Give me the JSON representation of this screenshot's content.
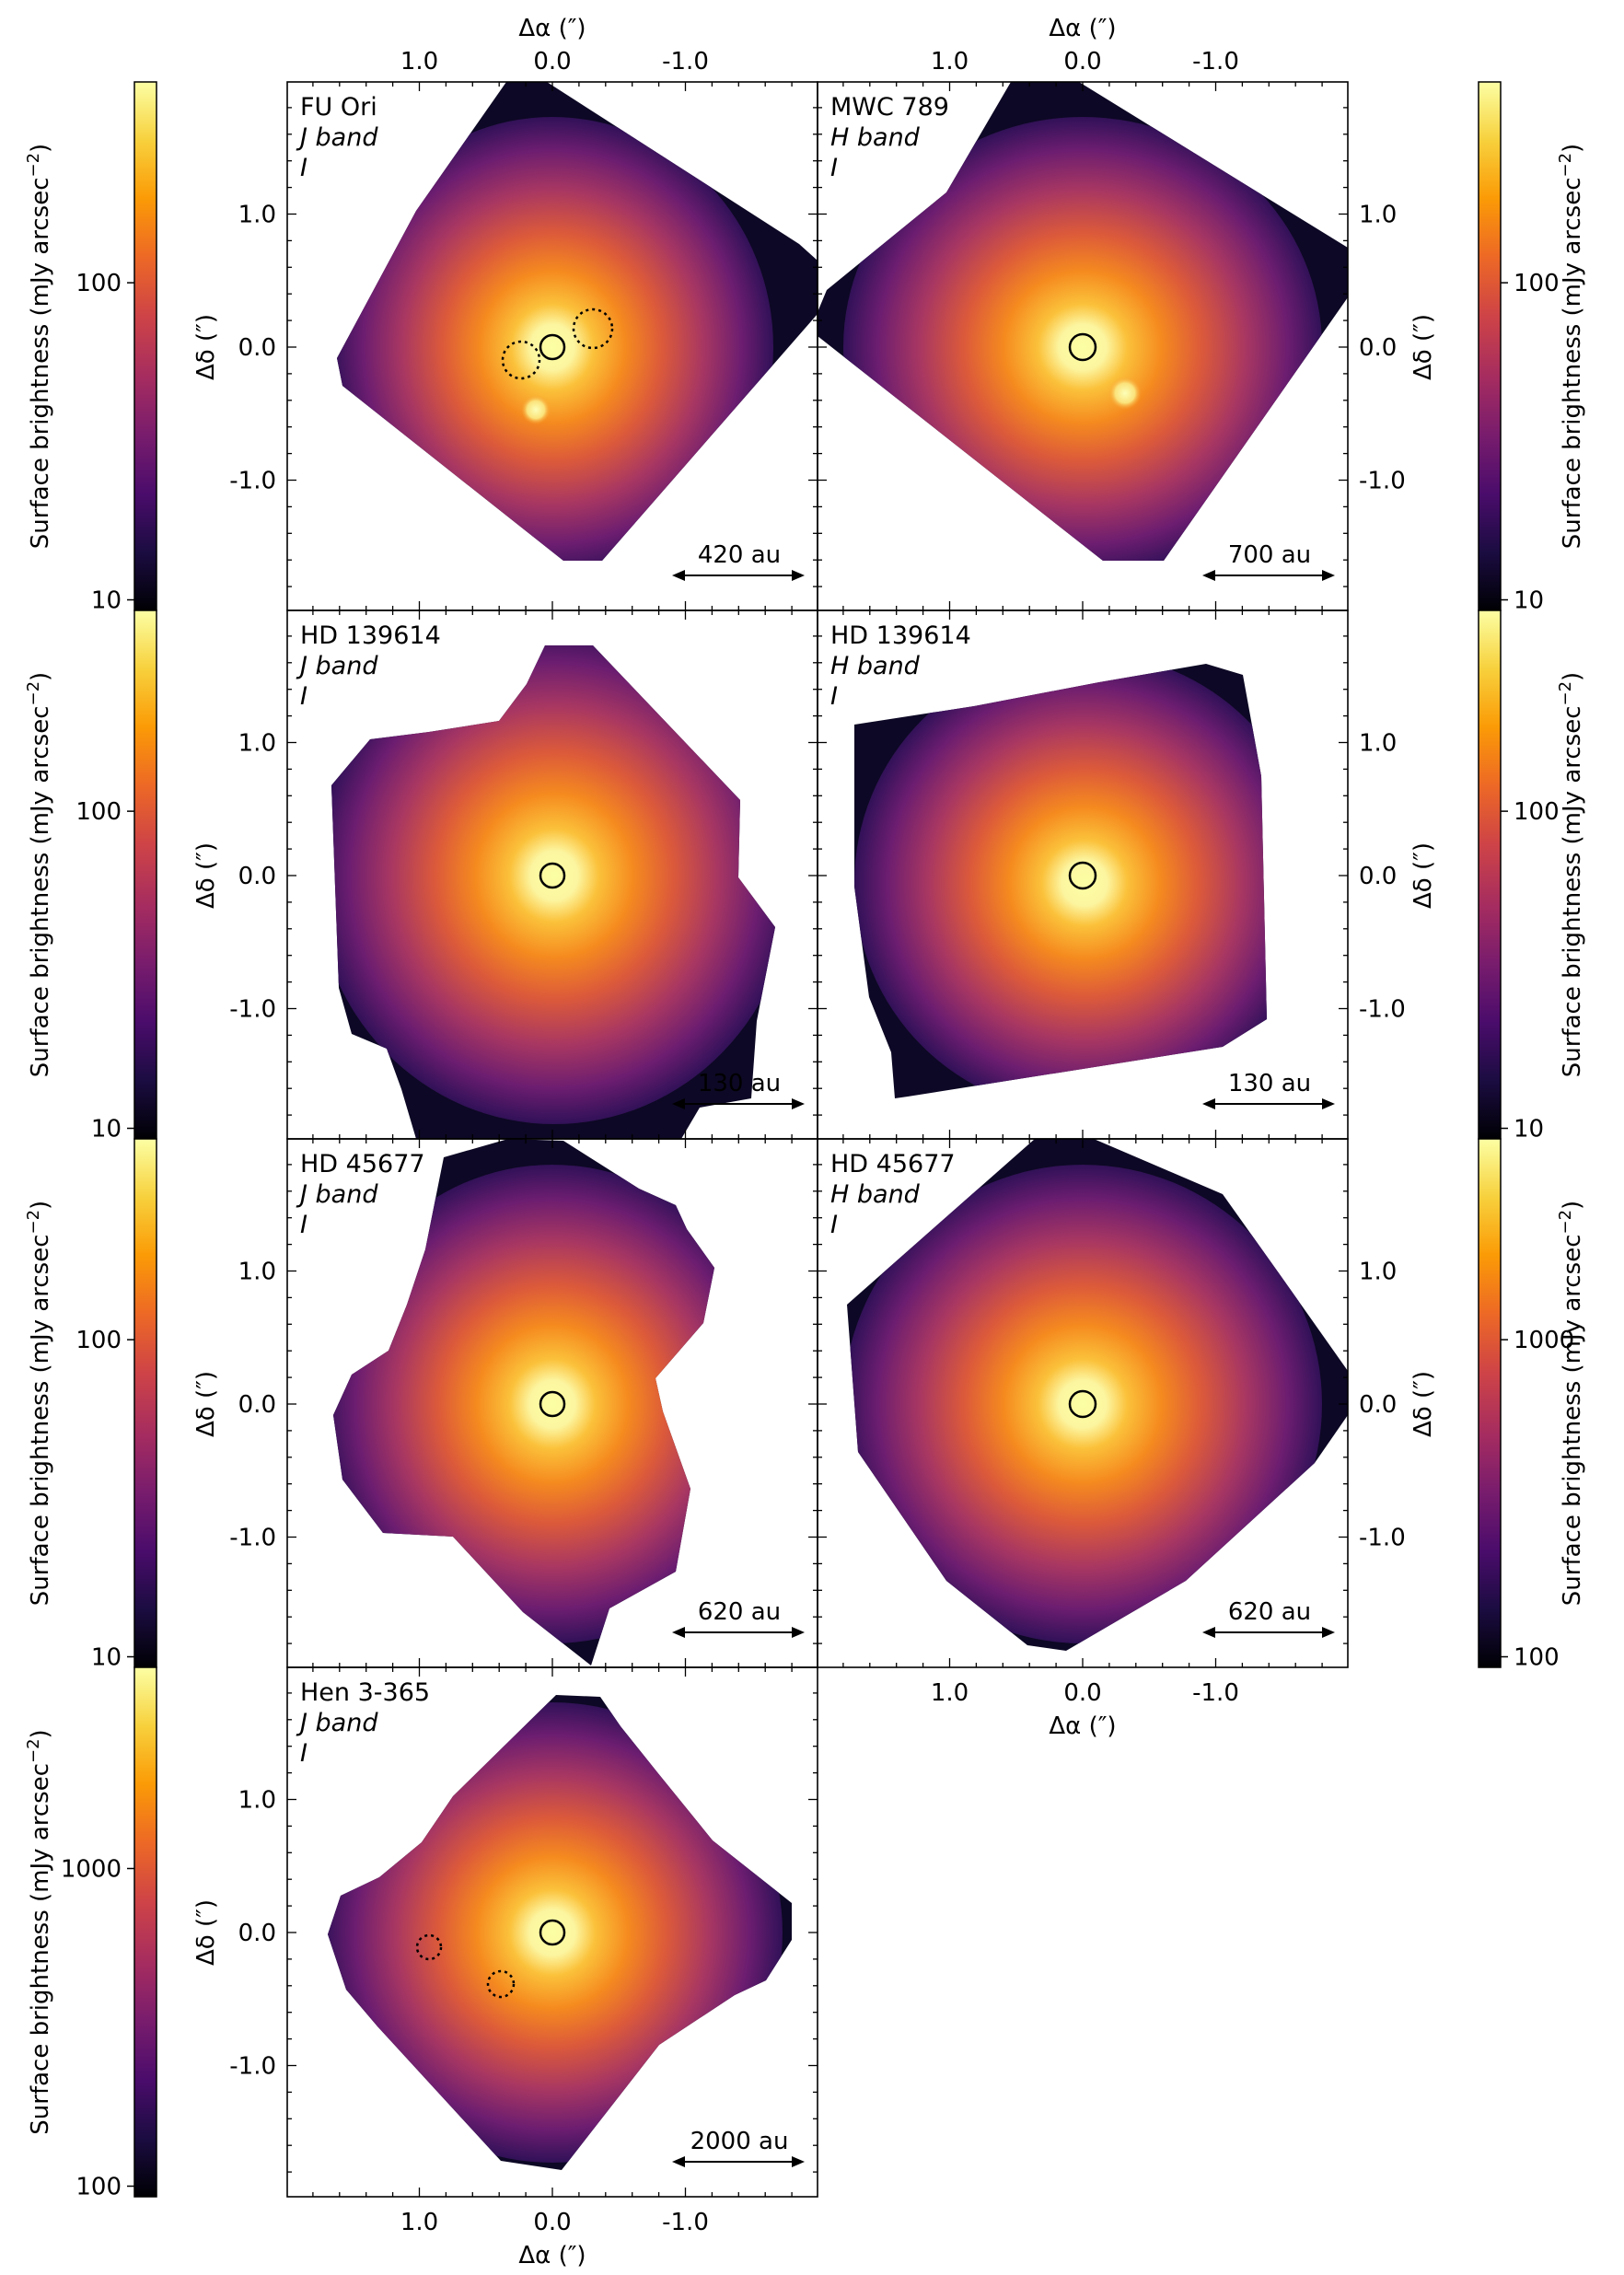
{
  "figure": {
    "x_axis_label": "Δα (″)",
    "y_axis_label": "Δδ (″)",
    "colorbar_label": "Surface brightness (mJy arcsec",
    "colorbar_label_exp": "−2",
    "colorbar_label_close": ")",
    "colormap": [
      "#000004",
      "#1b0c41",
      "#4a0c6b",
      "#781c6d",
      "#a52c60",
      "#cf4446",
      "#ed6925",
      "#fb9b06",
      "#f7d13d",
      "#fcffa4"
    ],
    "x_ticks": [
      "1.0",
      "0.0",
      "-1.0"
    ],
    "y_ticks": [
      "1.0",
      "0.0",
      "-1.0"
    ]
  },
  "panels": [
    {
      "target": "FU Ori",
      "band": "J band",
      "stokes": "I",
      "scale_bar": "420 au"
    },
    {
      "target": "MWC 789",
      "band": "H band",
      "stokes": "I",
      "scale_bar": "700 au"
    },
    {
      "target": "HD 139614",
      "band": "J band",
      "stokes": "I",
      "scale_bar": "130 au"
    },
    {
      "target": "HD 139614",
      "band": "H band",
      "stokes": "I",
      "scale_bar": "130 au"
    },
    {
      "target": "HD 45677",
      "band": "J band",
      "stokes": "I",
      "scale_bar": "620 au"
    },
    {
      "target": "HD 45677",
      "band": "H band",
      "stokes": "I",
      "scale_bar": "620 au"
    },
    {
      "target": "Hen 3-365",
      "band": "J band",
      "stokes": "I",
      "scale_bar": "2000 au"
    }
  ],
  "colorbars": [
    {
      "side": "left",
      "ticks": [
        "100",
        "10"
      ]
    },
    {
      "side": "right",
      "ticks": [
        "100",
        "10"
      ]
    },
    {
      "side": "left",
      "ticks": [
        "100",
        "10"
      ]
    },
    {
      "side": "right",
      "ticks": [
        "100",
        "10"
      ]
    },
    {
      "side": "left",
      "ticks": [
        "100",
        "10"
      ]
    },
    {
      "side": "right",
      "ticks": [
        "1000",
        "100"
      ]
    },
    {
      "side": "left",
      "ticks": [
        "1000",
        "100"
      ]
    }
  ]
}
